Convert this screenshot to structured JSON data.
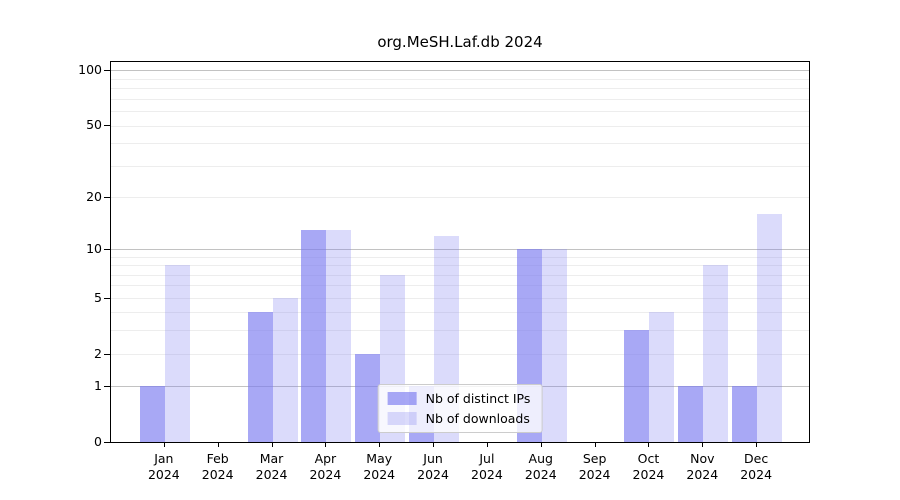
{
  "chart_data": {
    "type": "bar",
    "title": "org.MeSH.Laf.db 2024",
    "categories": [
      "Jan 2024",
      "Feb 2024",
      "Mar 2024",
      "Apr 2024",
      "May 2024",
      "Jun 2024",
      "Jul 2024",
      "Aug 2024",
      "Sep 2024",
      "Oct 2024",
      "Nov 2024",
      "Dec 2024"
    ],
    "series": [
      {
        "name": "Nb of distinct IPs",
        "color": "rgba(123,123,240,0.66)",
        "values": [
          1,
          0,
          4,
          13,
          2,
          1,
          0,
          10,
          0,
          3,
          1,
          1
        ]
      },
      {
        "name": "Nb of downloads",
        "color": "rgba(123,123,240,0.27)",
        "values": [
          8,
          0,
          5,
          13,
          7,
          12,
          0,
          10,
          0,
          4,
          8,
          16
        ]
      }
    ],
    "yscale": "log1p",
    "ylim": [
      0,
      115
    ],
    "yticks_labeled": [
      0,
      1,
      2,
      5,
      10,
      20,
      50,
      100
    ],
    "grid": {
      "major_values": [
        1,
        10,
        100
      ],
      "minor_values": [
        2,
        3,
        4,
        5,
        6,
        7,
        8,
        9,
        20,
        30,
        40,
        50,
        60,
        70,
        80,
        90
      ],
      "major_color": "#c2c2c2",
      "minor_color": "#ededed"
    },
    "legend_position": "lower center"
  }
}
